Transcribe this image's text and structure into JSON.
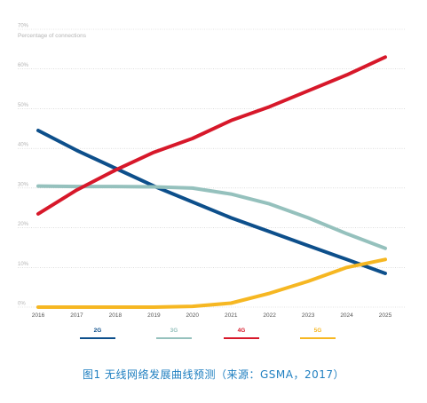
{
  "chart_data": {
    "type": "line",
    "title": "",
    "ylabel": "Percentage of connections",
    "xlabel": "",
    "x": [
      "2016",
      "2017",
      "2018",
      "2019",
      "2020",
      "2021",
      "2022",
      "2023",
      "2024",
      "2025"
    ],
    "ylim": [
      0,
      70
    ],
    "y_ticks": [
      "0%",
      "10%",
      "20%",
      "30%",
      "40%",
      "50%",
      "60%",
      "70%"
    ],
    "grid": "horizontal dotted",
    "legend_position": "bottom",
    "series": [
      {
        "name": "2G",
        "color": "#0d4f8b",
        "values": [
          44.5,
          39.5,
          35,
          30.5,
          26.5,
          22.5,
          19,
          15.5,
          12,
          8.5
        ]
      },
      {
        "name": "3G",
        "color": "#95c1bd",
        "values": [
          30.5,
          30.4,
          30.4,
          30.3,
          30,
          28.5,
          26,
          22.5,
          18.5,
          14.8
        ]
      },
      {
        "name": "4G",
        "color": "#d7182a",
        "values": [
          23.5,
          29.5,
          34.5,
          39,
          42.5,
          47,
          50.5,
          54.5,
          58.5,
          63
        ]
      },
      {
        "name": "5G",
        "color": "#f6b722",
        "values": [
          0,
          0,
          0,
          0,
          0.2,
          1,
          3.5,
          6.5,
          10,
          12
        ]
      }
    ]
  },
  "caption": "图1  无线网络发展曲线预测（来源：GSMA，2017）"
}
